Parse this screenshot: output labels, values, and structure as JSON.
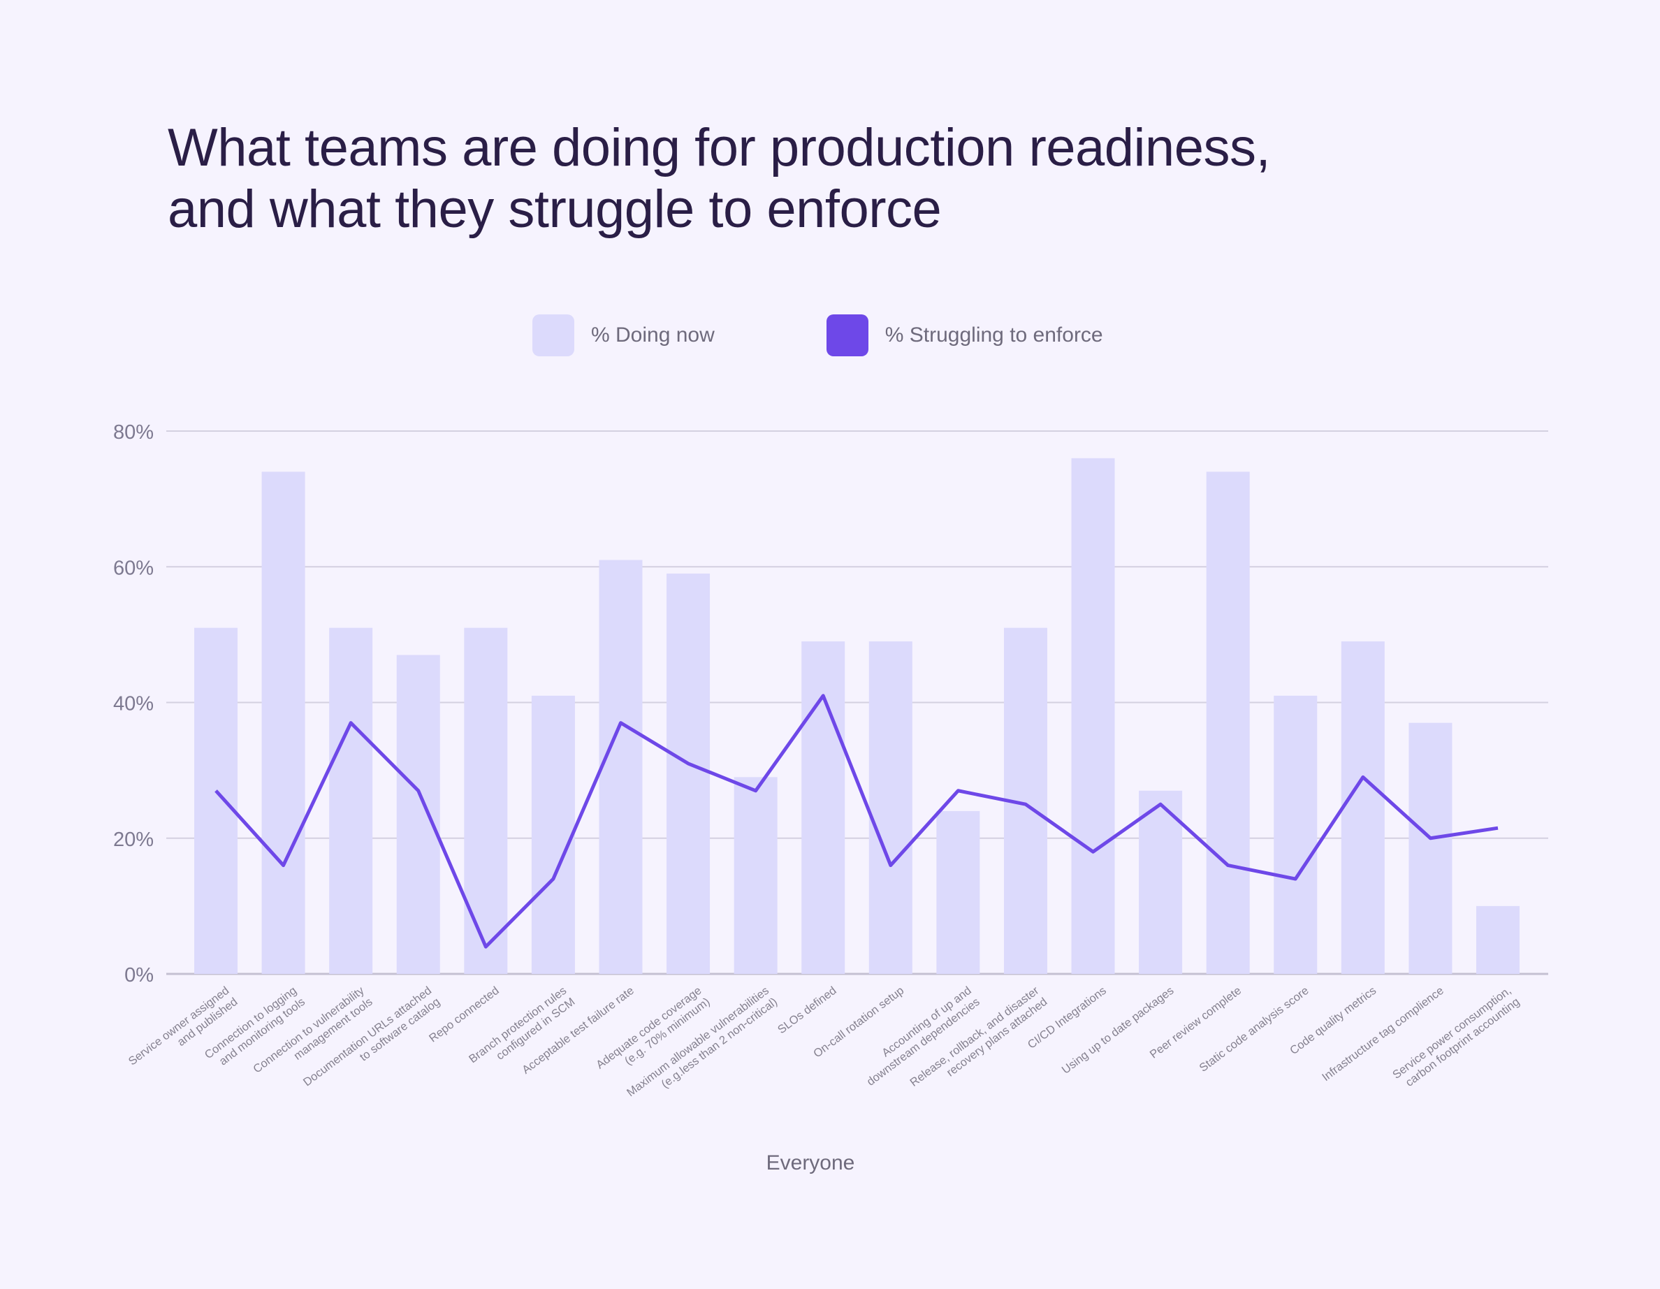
{
  "title_lines": [
    "What teams are doing for production readiness,",
    "and what they struggle to enforce"
  ],
  "legend": [
    {
      "label": "% Doing now",
      "color": "#dcdafc"
    },
    {
      "label": "% Struggling to enforce",
      "color": "#6e48e8"
    }
  ],
  "chart_data": {
    "type": "bar",
    "title": "What teams are doing for production readiness, and what they struggle to enforce",
    "xlabel": "Everyone",
    "ylabel": "",
    "ylim": [
      0,
      80
    ],
    "yticks": [
      "0%",
      "20%",
      "40%",
      "60%",
      "80%"
    ],
    "ytick_values": [
      0,
      20,
      40,
      60,
      80
    ],
    "grid": true,
    "legend_position": "top-center",
    "categories": [
      [
        "Service owner assigned",
        "and published"
      ],
      [
        "Connection to logging",
        "and monitoring tools"
      ],
      [
        "Connection to vulnerability",
        "management tools"
      ],
      [
        "Documentation URLs attached",
        "to software catalog"
      ],
      [
        "Repo connected"
      ],
      [
        "Branch protection rules",
        "configured in SCM"
      ],
      [
        "Acceptable test failure rate"
      ],
      [
        "Adequate code coverage",
        "(e.g. 70% minimum)"
      ],
      [
        "Maximum allowable vulnerabilities",
        "(e.g.less than 2 non-critical)"
      ],
      [
        "SLOs defined"
      ],
      [
        "On-call rotation setup"
      ],
      [
        "Accounting of up and",
        "downstream dependencies"
      ],
      [
        "Release, rollback, and disaster",
        "recovery plans attached"
      ],
      [
        "CI/CD Integrations"
      ],
      [
        "Using up to date packages"
      ],
      [
        "Peer review complete"
      ],
      [
        "Static code analysis score"
      ],
      [
        "Code quality metrics"
      ],
      [
        "Infrastructure tag complience"
      ],
      [
        "Service power consumption,",
        "carbon footprint accounting"
      ]
    ],
    "series": [
      {
        "name": "% Doing now",
        "type": "bar",
        "color": "#dcdafc",
        "values": [
          51,
          74,
          51,
          47,
          51,
          41,
          61,
          59,
          29,
          49,
          49,
          24,
          51,
          76,
          27,
          74,
          41,
          49,
          37,
          10
        ]
      },
      {
        "name": "% Struggling to enforce",
        "type": "line",
        "color": "#6e48e8",
        "values": [
          27,
          16,
          37,
          27,
          4,
          14,
          37,
          31,
          27,
          41,
          16,
          27,
          25,
          18,
          25,
          16,
          14,
          29,
          20,
          21.5
        ]
      }
    ]
  }
}
